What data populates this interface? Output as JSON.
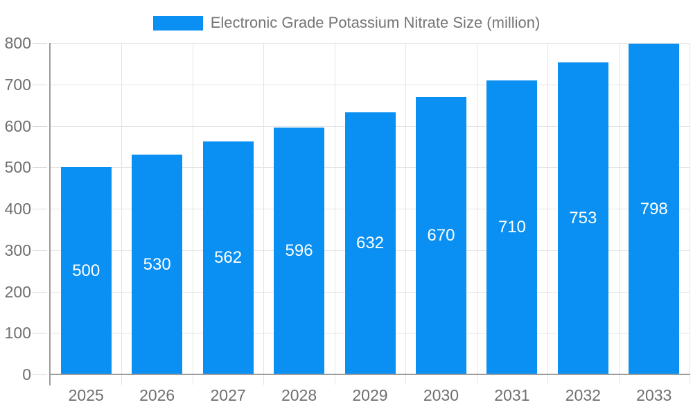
{
  "legend": {
    "label": "Electronic Grade Potassium Nitrate Size (million)"
  },
  "colors": {
    "bar": "#0a90f2",
    "bar_label_text": "#ffffff",
    "legend_text": "#757575",
    "axis_text": "#6f6f6f",
    "axis_line": "#9c9c9c",
    "gridline": "#e4e4e4",
    "tick": "#d9d9d9",
    "background": "#ffffff"
  },
  "chart_data": {
    "type": "bar",
    "title": "Electronic Grade Potassium Nitrate Size (million)",
    "categories": [
      "2025",
      "2026",
      "2027",
      "2028",
      "2029",
      "2030",
      "2031",
      "2032",
      "2033"
    ],
    "values": [
      500,
      530,
      562,
      596,
      632,
      670,
      710,
      753,
      798
    ],
    "xlabel": "",
    "ylabel": "",
    "ylim": [
      0,
      800
    ],
    "yticks": [
      0,
      100,
      200,
      300,
      400,
      500,
      600,
      700,
      800
    ],
    "grid": true,
    "legend_position": "top-center",
    "bar_value_labels": "inside-center"
  }
}
